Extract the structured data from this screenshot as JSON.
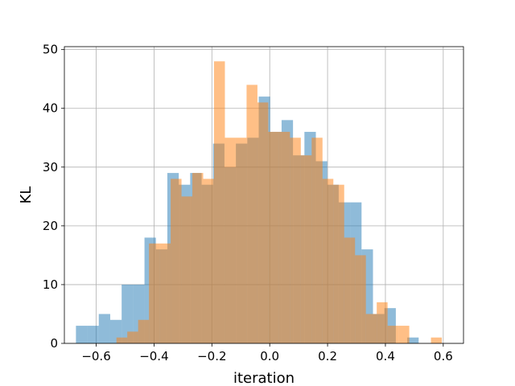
{
  "chart_data": {
    "type": "bar",
    "subtype": "overlapping-histogram",
    "title": "",
    "xlabel": "iteration",
    "ylabel": "KL",
    "xlim": [
      -0.71,
      0.67
    ],
    "ylim": [
      0,
      50.5
    ],
    "xticks": [
      -0.6,
      -0.4,
      -0.2,
      0.0,
      0.2,
      0.4,
      0.6
    ],
    "xtick_labels": [
      "−0.6",
      "−0.4",
      "−0.2",
      "0.0",
      "0.2",
      "0.4",
      "0.6"
    ],
    "yticks": [
      0,
      10,
      20,
      30,
      40,
      50
    ],
    "ytick_labels": [
      "0",
      "10",
      "20",
      "30",
      "40",
      "50"
    ],
    "grid": true,
    "legend": "none",
    "series": [
      {
        "color": "#1f77b4",
        "alpha": 0.5,
        "bin_edges": [
          -0.67,
          -0.6305,
          -0.591,
          -0.5515,
          -0.512,
          -0.4725,
          -0.433,
          -0.3935,
          -0.354,
          -0.3145,
          -0.275,
          -0.2355,
          -0.196,
          -0.1565,
          -0.117,
          -0.0775,
          -0.038,
          0.0015,
          0.041,
          0.0805,
          0.12,
          0.1595,
          0.199,
          0.2385,
          0.278,
          0.3175,
          0.357,
          0.3965,
          0.436,
          0.4755,
          0.515
        ],
        "counts": [
          3,
          3,
          5,
          4,
          10,
          10,
          18,
          16,
          29,
          27,
          29,
          27,
          34,
          30,
          34,
          35,
          42,
          36,
          38,
          32,
          36,
          31,
          27,
          24,
          24,
          16,
          5,
          6,
          0,
          1
        ]
      },
      {
        "color": "#ff7f0e",
        "alpha": 0.5,
        "bin_edges": [
          -0.53,
          -0.4925,
          -0.455,
          -0.4175,
          -0.38,
          -0.3425,
          -0.305,
          -0.2675,
          -0.23,
          -0.1925,
          -0.155,
          -0.1175,
          -0.08,
          -0.0425,
          -0.005,
          0.0325,
          0.07,
          0.1075,
          0.145,
          0.1825,
          0.22,
          0.2575,
          0.295,
          0.3325,
          0.37,
          0.4075,
          0.445,
          0.4825,
          0.52,
          0.5575,
          0.595
        ],
        "counts": [
          1,
          2,
          4,
          17,
          17,
          28,
          25,
          29,
          28,
          48,
          35,
          35,
          44,
          41,
          36,
          36,
          35,
          32,
          35,
          28,
          27,
          18,
          15,
          5,
          7,
          3,
          3,
          0,
          0,
          1
        ]
      }
    ]
  }
}
